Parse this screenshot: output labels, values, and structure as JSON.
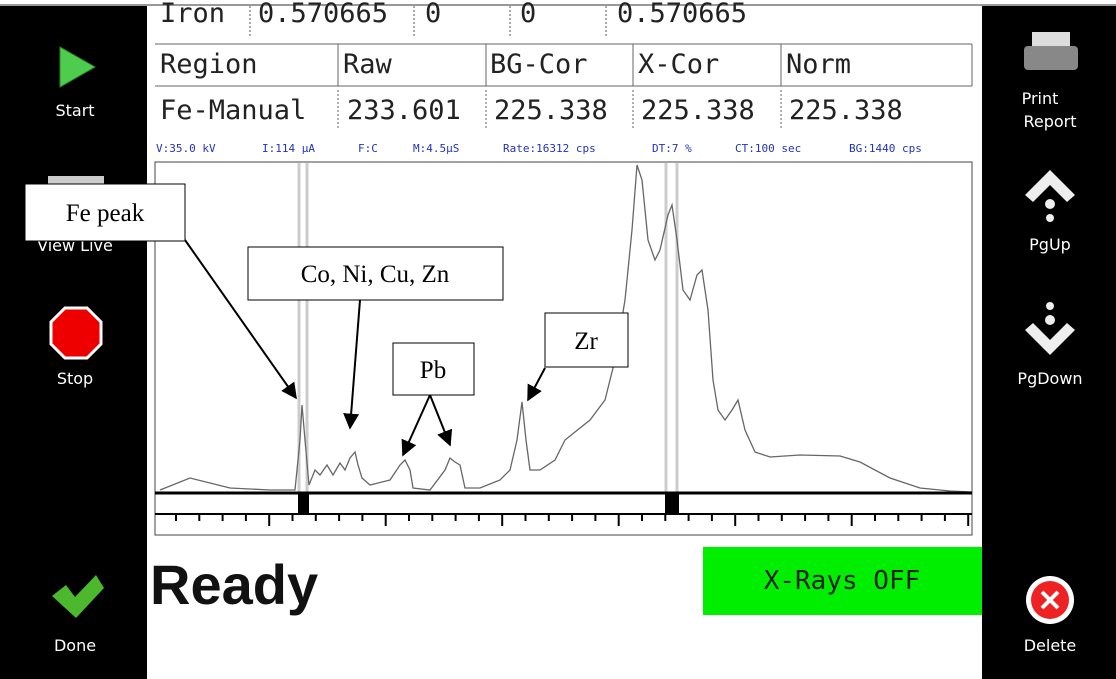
{
  "left_buttons": [
    "Start",
    "View Live",
    "Stop",
    "Done"
  ],
  "right_buttons": [
    [
      "Print",
      "Report"
    ],
    "PgUp",
    "PgDown",
    "Delete"
  ],
  "table": {
    "previous_row": [
      "Iron",
      "0.570665",
      "0",
      "0",
      "0.570665"
    ],
    "header": [
      "Region",
      "Raw",
      "BG-Cor",
      "X-Cor",
      "Norm"
    ],
    "row": [
      "Fe-Manual",
      "233.601",
      "225.338",
      "225.338",
      "225.338"
    ]
  },
  "status_line": [
    "V:35.0 kV",
    "I:114 µA",
    "F:C",
    "M:4.5µS",
    "Rate:16312 cps",
    "DT:7 %",
    "CT:100 sec",
    "BG:1440 cps"
  ],
  "annotations": [
    "Fe peak",
    "Co, Ni, Cu, Zn",
    "Pb",
    "Zr"
  ],
  "status": "Ready",
  "xray_status": "X-Rays OFF"
}
